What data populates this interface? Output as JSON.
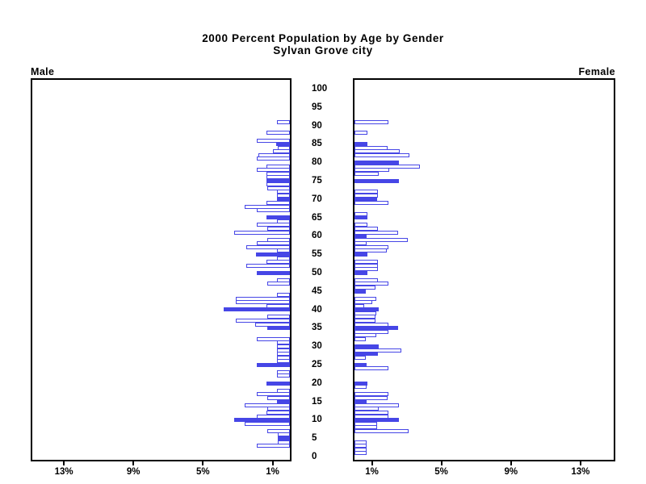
{
  "title": {
    "line1": "2000 Percent Population by Age by Gender",
    "line2": "Sylvan Grove city"
  },
  "panel_labels": {
    "male": "Male",
    "female": "Female"
  },
  "colors": {
    "bar_blue": "#4646e6",
    "axis_black": "#000000",
    "background": "#ffffff"
  },
  "chart_data": {
    "type": "bar",
    "subtype": "population-pyramid",
    "title": "2000 Percent Population by Age by Gender",
    "subtitle": "Sylvan Grove city",
    "unit": "percent of total population",
    "age_axis": {
      "min": 0,
      "max": 100,
      "tick_interval": 5,
      "tick_labels": [
        "0",
        "5",
        "10",
        "15",
        "20",
        "25",
        "30",
        "35",
        "40",
        "45",
        "50",
        "55",
        "60",
        "65",
        "70",
        "75",
        "80",
        "85",
        "90",
        "95",
        "100"
      ]
    },
    "x_axis": {
      "max_percent": 15,
      "male_tick_values": [
        13,
        9,
        5,
        1
      ],
      "male_tick_labels": [
        "13%",
        "9%",
        "5%",
        "1%"
      ],
      "female_tick_values": [
        1,
        5,
        9,
        13
      ],
      "female_tick_labels": [
        "1%",
        "5%",
        "9%",
        "13%"
      ]
    },
    "fill_rule": "bars at ages divisible by 5 are drawn solid blue; other ages are white with blue outline",
    "fill_exceptions": {
      "male_outline_ages": [
        30
      ],
      "female_extra_solid_ages": [
        28
      ]
    },
    "series": [
      {
        "name": "Male",
        "side": "left",
        "ages": "index = single year of age, 0 to 100",
        "values": [
          0,
          0,
          0,
          1.9,
          0.7,
          0.7,
          0.7,
          1.3,
          0,
          2.6,
          3.2,
          1.9,
          1.35,
          1.3,
          2.6,
          0.74,
          1.3,
          1.9,
          0.74,
          0,
          1.35,
          0,
          0.74,
          0.74,
          0,
          1.9,
          0.74,
          0.74,
          0.74,
          0.74,
          0.74,
          0.74,
          1.9,
          0,
          0,
          1.3,
          2.0,
          3.1,
          1.3,
          0,
          3.8,
          1.35,
          3.1,
          3.1,
          0.74,
          0,
          0,
          1.3,
          0.74,
          0,
          1.9,
          0,
          2.5,
          1.35,
          0.74,
          1.95,
          0.74,
          2.5,
          1.9,
          1.3,
          0,
          3.2,
          1.3,
          1.9,
          0.74,
          1.35,
          0,
          1.9,
          2.6,
          1.35,
          0.74,
          0.74,
          0.74,
          1.3,
          1.35,
          1.35,
          1.35,
          1.35,
          1.9,
          1.35,
          0,
          1.9,
          1.8,
          1.0,
          0.7,
          0.8,
          1.9,
          0,
          1.35,
          0,
          0,
          0.74,
          0,
          0,
          0,
          0,
          0,
          0,
          0,
          0,
          0
        ]
      },
      {
        "name": "Female",
        "side": "right",
        "ages": "index = single year of age, 0 to 100",
        "values": [
          0,
          0.7,
          0.7,
          0.7,
          0.7,
          0,
          0,
          3.1,
          1.3,
          1.3,
          2.55,
          1.95,
          1.95,
          1.4,
          2.55,
          0.7,
          1.9,
          1.95,
          0,
          0.7,
          0.74,
          0,
          0,
          0,
          1.95,
          0.7,
          0,
          0.65,
          1.35,
          2.7,
          1.4,
          0,
          0.65,
          1.25,
          1.95,
          2.5,
          1.95,
          1.2,
          1.2,
          1.25,
          1.4,
          0.55,
          1.0,
          1.25,
          0,
          0.65,
          1.2,
          1.95,
          1.35,
          0,
          0.74,
          1.35,
          1.35,
          1.35,
          0,
          0.74,
          1.86,
          1.95,
          0.7,
          3.07,
          0.7,
          2.5,
          1.35,
          0.74,
          0,
          0.74,
          0.74,
          0,
          0,
          1.95,
          1.3,
          1.35,
          1.35,
          0,
          0,
          2.55,
          0,
          1.4,
          2.0,
          3.77,
          2.55,
          0,
          3.16,
          2.6,
          1.9,
          0.74,
          0,
          0,
          0.74,
          0,
          0,
          1.95,
          0,
          0,
          0,
          0,
          0,
          0,
          0,
          0,
          0
        ]
      }
    ],
    "legend": "none",
    "grid": "off"
  }
}
